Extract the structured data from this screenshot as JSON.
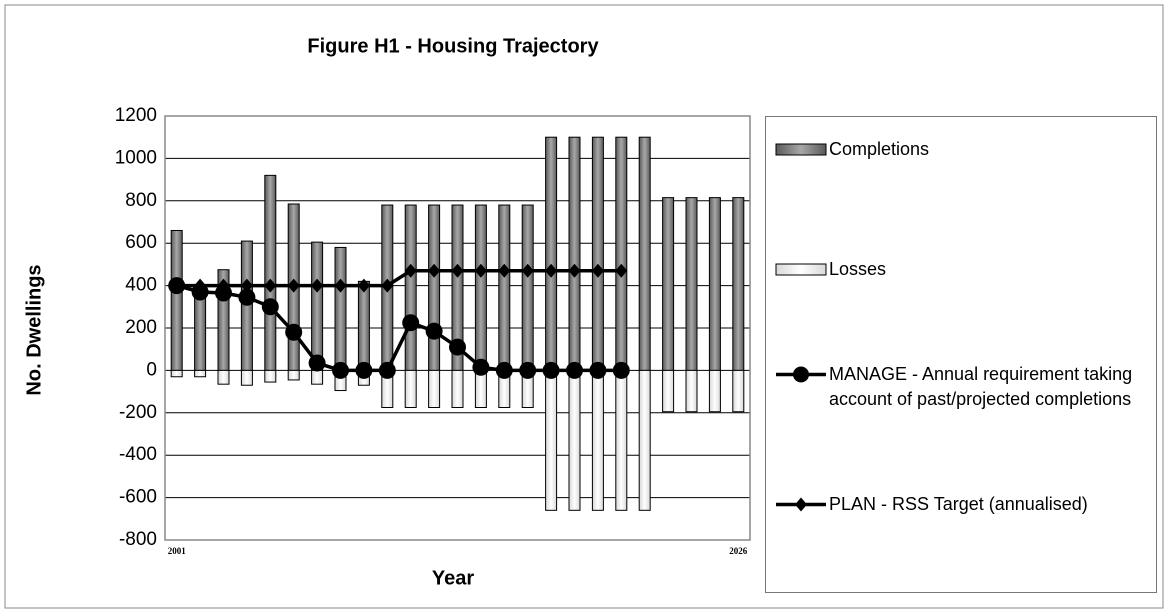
{
  "chart_data": {
    "type": "bar",
    "title": "Figure H1 - Housing Trajectory",
    "x_label": "Year",
    "y_label": "No. Dwellings",
    "categories": [
      "2001",
      null,
      null,
      null,
      null,
      null,
      null,
      null,
      null,
      null,
      null,
      null,
      null,
      null,
      null,
      null,
      null,
      null,
      null,
      null,
      null,
      null,
      null,
      null,
      "2026"
    ],
    "ylim": [
      -800,
      1200
    ],
    "yticks": [
      -800,
      -600,
      -400,
      -200,
      0,
      200,
      400,
      600,
      800,
      1000,
      1200
    ],
    "grid": true,
    "legend": "right",
    "series": [
      {
        "name": "Completions",
        "type": "bar",
        "color": "#8c8c8c",
        "values": [
          660,
          390,
          475,
          610,
          920,
          785,
          605,
          580,
          420,
          780,
          780,
          780,
          780,
          780,
          780,
          780,
          1100,
          1100,
          1100,
          1100,
          1100,
          815,
          815,
          815,
          815
        ]
      },
      {
        "name": "Losses",
        "type": "bar",
        "color": "#ffffff",
        "values": [
          -30,
          -30,
          -65,
          -70,
          -55,
          -45,
          -65,
          -95,
          -70,
          -175,
          -175,
          -175,
          -175,
          -175,
          -175,
          -175,
          -660,
          -660,
          -660,
          -660,
          -660,
          -195,
          -195,
          -195,
          -195
        ]
      },
      {
        "name": "MANAGE - Annual requirement taking account of past/projected completions",
        "type": "line",
        "marker": "circle",
        "color": "#000000",
        "values": [
          400,
          370,
          365,
          345,
          300,
          180,
          35,
          0,
          0,
          0,
          225,
          185,
          110,
          15,
          0,
          0,
          0,
          0,
          0,
          0,
          null,
          null,
          null,
          null,
          null
        ]
      },
      {
        "name": "PLAN - RSS Target (annualised)",
        "type": "line",
        "marker": "diamond",
        "color": "#000000",
        "values": [
          400,
          400,
          400,
          400,
          400,
          400,
          400,
          400,
          400,
          400,
          470,
          470,
          470,
          470,
          470,
          470,
          470,
          470,
          470,
          470,
          null,
          null,
          null,
          null,
          null
        ]
      }
    ]
  }
}
